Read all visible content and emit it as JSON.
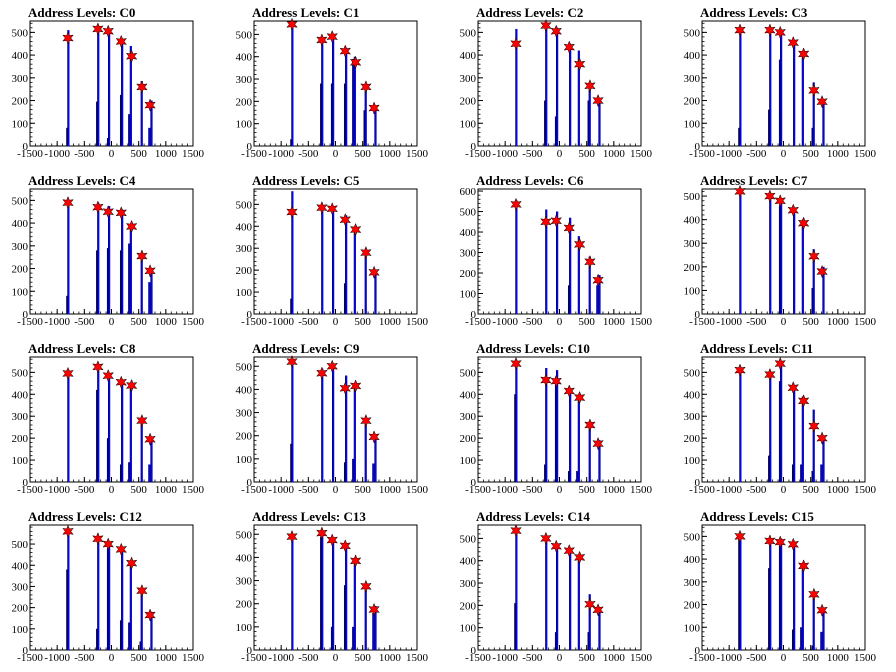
{
  "chart_data": [
    {
      "type": "bar",
      "title": "Address Levels: C0",
      "x_ticks": [
        -1500,
        -1000,
        -500,
        0,
        500,
        1000,
        1500
      ],
      "xlim": [
        -1500,
        1500
      ],
      "y_ticks": [
        0,
        100,
        200,
        300,
        400,
        500
      ],
      "ylim": [
        0,
        550
      ],
      "histogram": {
        "x": [
          -810,
          -790,
          -260,
          -240,
          -60,
          -40,
          180,
          200,
          330,
          360,
          540,
          560,
          700,
          740
        ],
        "values": [
          80,
          510,
          195,
          530,
          35,
          510,
          225,
          470,
          140,
          440,
          0,
          285,
          80,
          200
        ]
      },
      "markers": {
        "x": [
          -800,
          -250,
          -60,
          180,
          370,
          560,
          710
        ],
        "values": [
          475,
          515,
          505,
          460,
          395,
          260,
          180
        ]
      }
    },
    {
      "type": "bar",
      "title": "Address Levels: C1",
      "x_ticks": [
        -1500,
        -1000,
        -500,
        0,
        500,
        1000,
        1500
      ],
      "xlim": [
        -1500,
        1500
      ],
      "y_ticks": [
        0,
        100,
        200,
        300,
        400,
        500
      ],
      "ylim": [
        0,
        560
      ],
      "histogram": {
        "x": [
          -810,
          -790,
          -260,
          -240,
          -60,
          -40,
          180,
          200,
          330,
          360,
          540,
          560,
          700,
          740
        ],
        "values": [
          30,
          545,
          280,
          480,
          280,
          490,
          280,
          440,
          390,
          400,
          160,
          265,
          0,
          175
        ]
      },
      "markers": {
        "x": [
          -800,
          -250,
          -60,
          180,
          370,
          560,
          710
        ],
        "values": [
          545,
          475,
          490,
          425,
          375,
          265,
          170
        ]
      }
    },
    {
      "type": "bar",
      "title": "Address Levels: C2",
      "x_ticks": [
        -1500,
        -1000,
        -500,
        0,
        500,
        1000,
        1500
      ],
      "xlim": [
        -1500,
        1500
      ],
      "y_ticks": [
        0,
        100,
        200,
        300,
        400,
        500
      ],
      "ylim": [
        0,
        550
      ],
      "histogram": {
        "x": [
          -810,
          -790,
          -260,
          -240,
          -60,
          -40,
          180,
          200,
          330,
          360,
          540,
          560,
          700,
          740
        ],
        "values": [
          0,
          515,
          200,
          535,
          130,
          520,
          0,
          450,
          0,
          420,
          200,
          260,
          0,
          200
        ]
      },
      "markers": {
        "x": [
          -800,
          -250,
          -60,
          180,
          370,
          560,
          710
        ],
        "values": [
          450,
          530,
          505,
          435,
          360,
          265,
          200
        ]
      }
    },
    {
      "type": "bar",
      "title": "Address Levels: C3",
      "x_ticks": [
        -1500,
        -1000,
        -500,
        0,
        500,
        1000,
        1500
      ],
      "xlim": [
        -1500,
        1500
      ],
      "y_ticks": [
        0,
        100,
        200,
        300,
        400,
        500
      ],
      "ylim": [
        0,
        550
      ],
      "histogram": {
        "x": [
          -810,
          -790,
          -260,
          -240,
          -60,
          -40,
          180,
          200,
          330,
          360,
          540,
          560,
          700,
          740
        ],
        "values": [
          80,
          510,
          160,
          520,
          380,
          500,
          0,
          460,
          0,
          410,
          80,
          280,
          0,
          200
        ]
      },
      "markers": {
        "x": [
          -800,
          -250,
          -60,
          180,
          370,
          560,
          710
        ],
        "values": [
          510,
          510,
          500,
          455,
          405,
          245,
          195
        ]
      }
    },
    {
      "type": "bar",
      "title": "Address Levels: C4",
      "x_ticks": [
        -1500,
        -1000,
        -500,
        0,
        500,
        1000,
        1500
      ],
      "xlim": [
        -1500,
        1500
      ],
      "y_ticks": [
        0,
        100,
        200,
        300,
        400,
        500
      ],
      "ylim": [
        0,
        550
      ],
      "histogram": {
        "x": [
          -810,
          -790,
          -260,
          -240,
          -60,
          -40,
          180,
          200,
          330,
          360,
          540,
          560,
          700,
          740
        ],
        "values": [
          80,
          495,
          280,
          490,
          290,
          475,
          280,
          460,
          310,
          390,
          0,
          265,
          140,
          200
        ]
      },
      "markers": {
        "x": [
          -800,
          -250,
          -60,
          180,
          370,
          560,
          710
        ],
        "values": [
          490,
          470,
          450,
          445,
          385,
          255,
          190
        ]
      }
    },
    {
      "type": "bar",
      "title": "Address Levels: C5",
      "x_ticks": [
        -1500,
        -1000,
        -500,
        0,
        500,
        1000,
        1500
      ],
      "xlim": [
        -1500,
        1500
      ],
      "y_ticks": [
        0,
        100,
        200,
        300,
        400,
        500
      ],
      "ylim": [
        0,
        570
      ],
      "histogram": {
        "x": [
          -810,
          -790,
          -260,
          -240,
          -60,
          -40,
          180,
          200,
          330,
          360,
          540,
          560,
          700,
          740
        ],
        "values": [
          70,
          560,
          0,
          490,
          0,
          490,
          140,
          450,
          0,
          400,
          0,
          280,
          0,
          190
        ]
      },
      "markers": {
        "x": [
          -800,
          -250,
          -60,
          180,
          370,
          560,
          710
        ],
        "values": [
          465,
          485,
          480,
          430,
          385,
          280,
          190
        ]
      }
    },
    {
      "type": "bar",
      "title": "Address Levels: C6",
      "x_ticks": [
        -1500,
        -1000,
        -500,
        0,
        500,
        1000,
        1500
      ],
      "xlim": [
        -1500,
        1500
      ],
      "y_ticks": [
        0,
        100,
        200,
        300,
        400,
        500,
        600
      ],
      "ylim": [
        0,
        610
      ],
      "histogram": {
        "x": [
          -810,
          -790,
          -260,
          -240,
          -60,
          -40,
          180,
          200,
          330,
          360,
          540,
          560,
          700,
          740
        ],
        "values": [
          0,
          555,
          0,
          510,
          0,
          500,
          140,
          470,
          0,
          380,
          0,
          280,
          140,
          190
        ]
      },
      "markers": {
        "x": [
          -800,
          -250,
          -60,
          180,
          370,
          560,
          710
        ],
        "values": [
          535,
          450,
          455,
          420,
          340,
          255,
          165
        ]
      }
    },
    {
      "type": "bar",
      "title": "Address Levels: C7",
      "x_ticks": [
        -1500,
        -1000,
        -500,
        0,
        500,
        1000,
        1500
      ],
      "xlim": [
        -1500,
        1500
      ],
      "y_ticks": [
        0,
        100,
        200,
        300,
        400,
        500
      ],
      "ylim": [
        0,
        530
      ],
      "histogram": {
        "x": [
          -810,
          -790,
          -260,
          -240,
          -60,
          -40,
          180,
          200,
          330,
          360,
          540,
          560,
          700,
          740
        ],
        "values": [
          0,
          520,
          0,
          505,
          460,
          480,
          0,
          445,
          0,
          400,
          110,
          275,
          0,
          200
        ]
      },
      "markers": {
        "x": [
          -800,
          -250,
          -60,
          180,
          370,
          560,
          710
        ],
        "values": [
          520,
          500,
          480,
          440,
          385,
          245,
          180
        ]
      }
    },
    {
      "type": "bar",
      "title": "Address Levels: C8",
      "x_ticks": [
        -1500,
        -1000,
        -500,
        0,
        500,
        1000,
        1500
      ],
      "xlim": [
        -1500,
        1500
      ],
      "y_ticks": [
        0,
        100,
        200,
        300,
        400,
        500
      ],
      "ylim": [
        0,
        570
      ],
      "histogram": {
        "x": [
          -810,
          -790,
          -260,
          -240,
          -60,
          -40,
          180,
          200,
          330,
          360,
          540,
          560,
          700,
          740
        ],
        "values": [
          0,
          500,
          420,
          510,
          200,
          480,
          80,
          460,
          90,
          440,
          0,
          290,
          80,
          200
        ]
      },
      "markers": {
        "x": [
          -800,
          -250,
          -60,
          180,
          370,
          560,
          710
        ],
        "values": [
          495,
          525,
          485,
          455,
          440,
          280,
          195
        ]
      }
    },
    {
      "type": "bar",
      "title": "Address Levels: C9",
      "x_ticks": [
        -1500,
        -1000,
        -500,
        0,
        500,
        1000,
        1500
      ],
      "xlim": [
        -1500,
        1500
      ],
      "y_ticks": [
        0,
        100,
        200,
        300,
        400,
        500
      ],
      "ylim": [
        0,
        540
      ],
      "histogram": {
        "x": [
          -810,
          -790,
          -260,
          -240,
          -60,
          -40,
          180,
          200,
          330,
          360,
          540,
          560,
          700,
          740
        ],
        "values": [
          165,
          520,
          0,
          490,
          0,
          510,
          85,
          460,
          100,
          425,
          0,
          275,
          80,
          200
        ]
      },
      "markers": {
        "x": [
          -800,
          -250,
          -60,
          180,
          370,
          560,
          710
        ],
        "values": [
          520,
          470,
          500,
          405,
          415,
          265,
          195
        ]
      }
    },
    {
      "type": "bar",
      "title": "Address Levels: C10",
      "x_ticks": [
        -1500,
        -1000,
        -500,
        0,
        500,
        1000,
        1500
      ],
      "xlim": [
        -1500,
        1500
      ],
      "y_ticks": [
        0,
        100,
        200,
        300,
        400,
        500
      ],
      "ylim": [
        0,
        570
      ],
      "histogram": {
        "x": [
          -810,
          -790,
          -260,
          -240,
          -60,
          -40,
          180,
          200,
          330,
          360,
          540,
          560,
          700,
          740
        ],
        "values": [
          400,
          540,
          80,
          520,
          480,
          510,
          50,
          420,
          50,
          400,
          0,
          270,
          0,
          190
        ]
      },
      "markers": {
        "x": [
          -800,
          -250,
          -60,
          180,
          370,
          560,
          710
        ],
        "values": [
          540,
          465,
          460,
          415,
          385,
          260,
          175
        ]
      }
    },
    {
      "type": "bar",
      "title": "Address Levels: C11",
      "x_ticks": [
        -1500,
        -1000,
        -500,
        0,
        500,
        1000,
        1500
      ],
      "xlim": [
        -1500,
        1500
      ],
      "y_ticks": [
        0,
        100,
        200,
        300,
        400,
        500
      ],
      "ylim": [
        0,
        570
      ],
      "histogram": {
        "x": [
          -810,
          -790,
          -260,
          -240,
          -60,
          -40,
          180,
          200,
          330,
          360,
          540,
          560,
          700,
          740
        ],
        "values": [
          0,
          510,
          120,
          500,
          460,
          540,
          80,
          440,
          80,
          390,
          50,
          330,
          80,
          210
        ]
      },
      "markers": {
        "x": [
          -800,
          -250,
          -60,
          180,
          370,
          560,
          710
        ],
        "values": [
          510,
          490,
          540,
          430,
          370,
          255,
          200
        ]
      }
    },
    {
      "type": "bar",
      "title": "Address Levels: C12",
      "x_ticks": [
        -1500,
        -1000,
        -500,
        0,
        500,
        1000,
        1500
      ],
      "xlim": [
        -1500,
        1500
      ],
      "y_ticks": [
        0,
        100,
        200,
        300,
        400,
        500
      ],
      "ylim": [
        0,
        590
      ],
      "histogram": {
        "x": [
          -810,
          -790,
          -260,
          -240,
          -60,
          -40,
          180,
          200,
          330,
          360,
          540,
          560,
          700,
          740
        ],
        "values": [
          380,
          560,
          100,
          520,
          480,
          510,
          140,
          470,
          130,
          420,
          40,
          290,
          0,
          180
        ]
      },
      "markers": {
        "x": [
          -800,
          -250,
          -60,
          180,
          370,
          560,
          710
        ],
        "values": [
          560,
          525,
          500,
          475,
          410,
          280,
          165
        ]
      }
    },
    {
      "type": "bar",
      "title": "Address Levels: C13",
      "x_ticks": [
        -1500,
        -1000,
        -500,
        0,
        500,
        1000,
        1500
      ],
      "xlim": [
        -1500,
        1500
      ],
      "y_ticks": [
        0,
        100,
        200,
        300,
        400,
        500
      ],
      "ylim": [
        0,
        540
      ],
      "histogram": {
        "x": [
          -810,
          -790,
          -260,
          -240,
          -60,
          -40,
          180,
          200,
          330,
          360,
          540,
          560,
          700,
          740
        ],
        "values": [
          0,
          490,
          490,
          510,
          100,
          480,
          280,
          450,
          100,
          390,
          0,
          280,
          160,
          190
        ]
      },
      "markers": {
        "x": [
          -800,
          -250,
          -60,
          180,
          370,
          560,
          710
        ],
        "values": [
          490,
          505,
          475,
          450,
          385,
          275,
          175
        ]
      }
    },
    {
      "type": "bar",
      "title": "Address Levels: C14",
      "x_ticks": [
        -1500,
        -1000,
        -500,
        0,
        500,
        1000,
        1500
      ],
      "xlim": [
        -1500,
        1500
      ],
      "y_ticks": [
        0,
        100,
        200,
        300,
        400,
        500
      ],
      "ylim": [
        0,
        560
      ],
      "histogram": {
        "x": [
          -810,
          -790,
          -260,
          -240,
          -60,
          -40,
          180,
          200,
          330,
          360,
          540,
          560,
          700,
          740
        ],
        "values": [
          210,
          535,
          0,
          500,
          80,
          470,
          0,
          450,
          0,
          420,
          80,
          250,
          0,
          190
        ]
      },
      "markers": {
        "x": [
          -800,
          -250,
          -60,
          180,
          370,
          560,
          710
        ],
        "values": [
          535,
          500,
          465,
          445,
          415,
          205,
          180
        ]
      }
    },
    {
      "type": "bar",
      "title": "Address Levels: C15",
      "x_ticks": [
        -1500,
        -1000,
        -500,
        0,
        500,
        1000,
        1500
      ],
      "xlim": [
        -1500,
        1500
      ],
      "y_ticks": [
        0,
        100,
        200,
        300,
        400,
        500
      ],
      "ylim": [
        0,
        550
      ],
      "histogram": {
        "x": [
          -810,
          -790,
          -260,
          -240,
          -60,
          -40,
          180,
          200,
          330,
          360,
          540,
          560,
          700,
          740
        ],
        "values": [
          490,
          500,
          360,
          490,
          480,
          490,
          90,
          460,
          100,
          380,
          20,
          250,
          80,
          180
        ]
      },
      "markers": {
        "x": [
          -800,
          -250,
          -60,
          180,
          370,
          560,
          710
        ],
        "values": [
          500,
          480,
          475,
          465,
          370,
          245,
          175
        ]
      }
    }
  ],
  "colors": {
    "histogram": "#0000ff",
    "histogram_outline": "#000000",
    "marker": "#ff0000",
    "marker_outline": "#000000"
  }
}
